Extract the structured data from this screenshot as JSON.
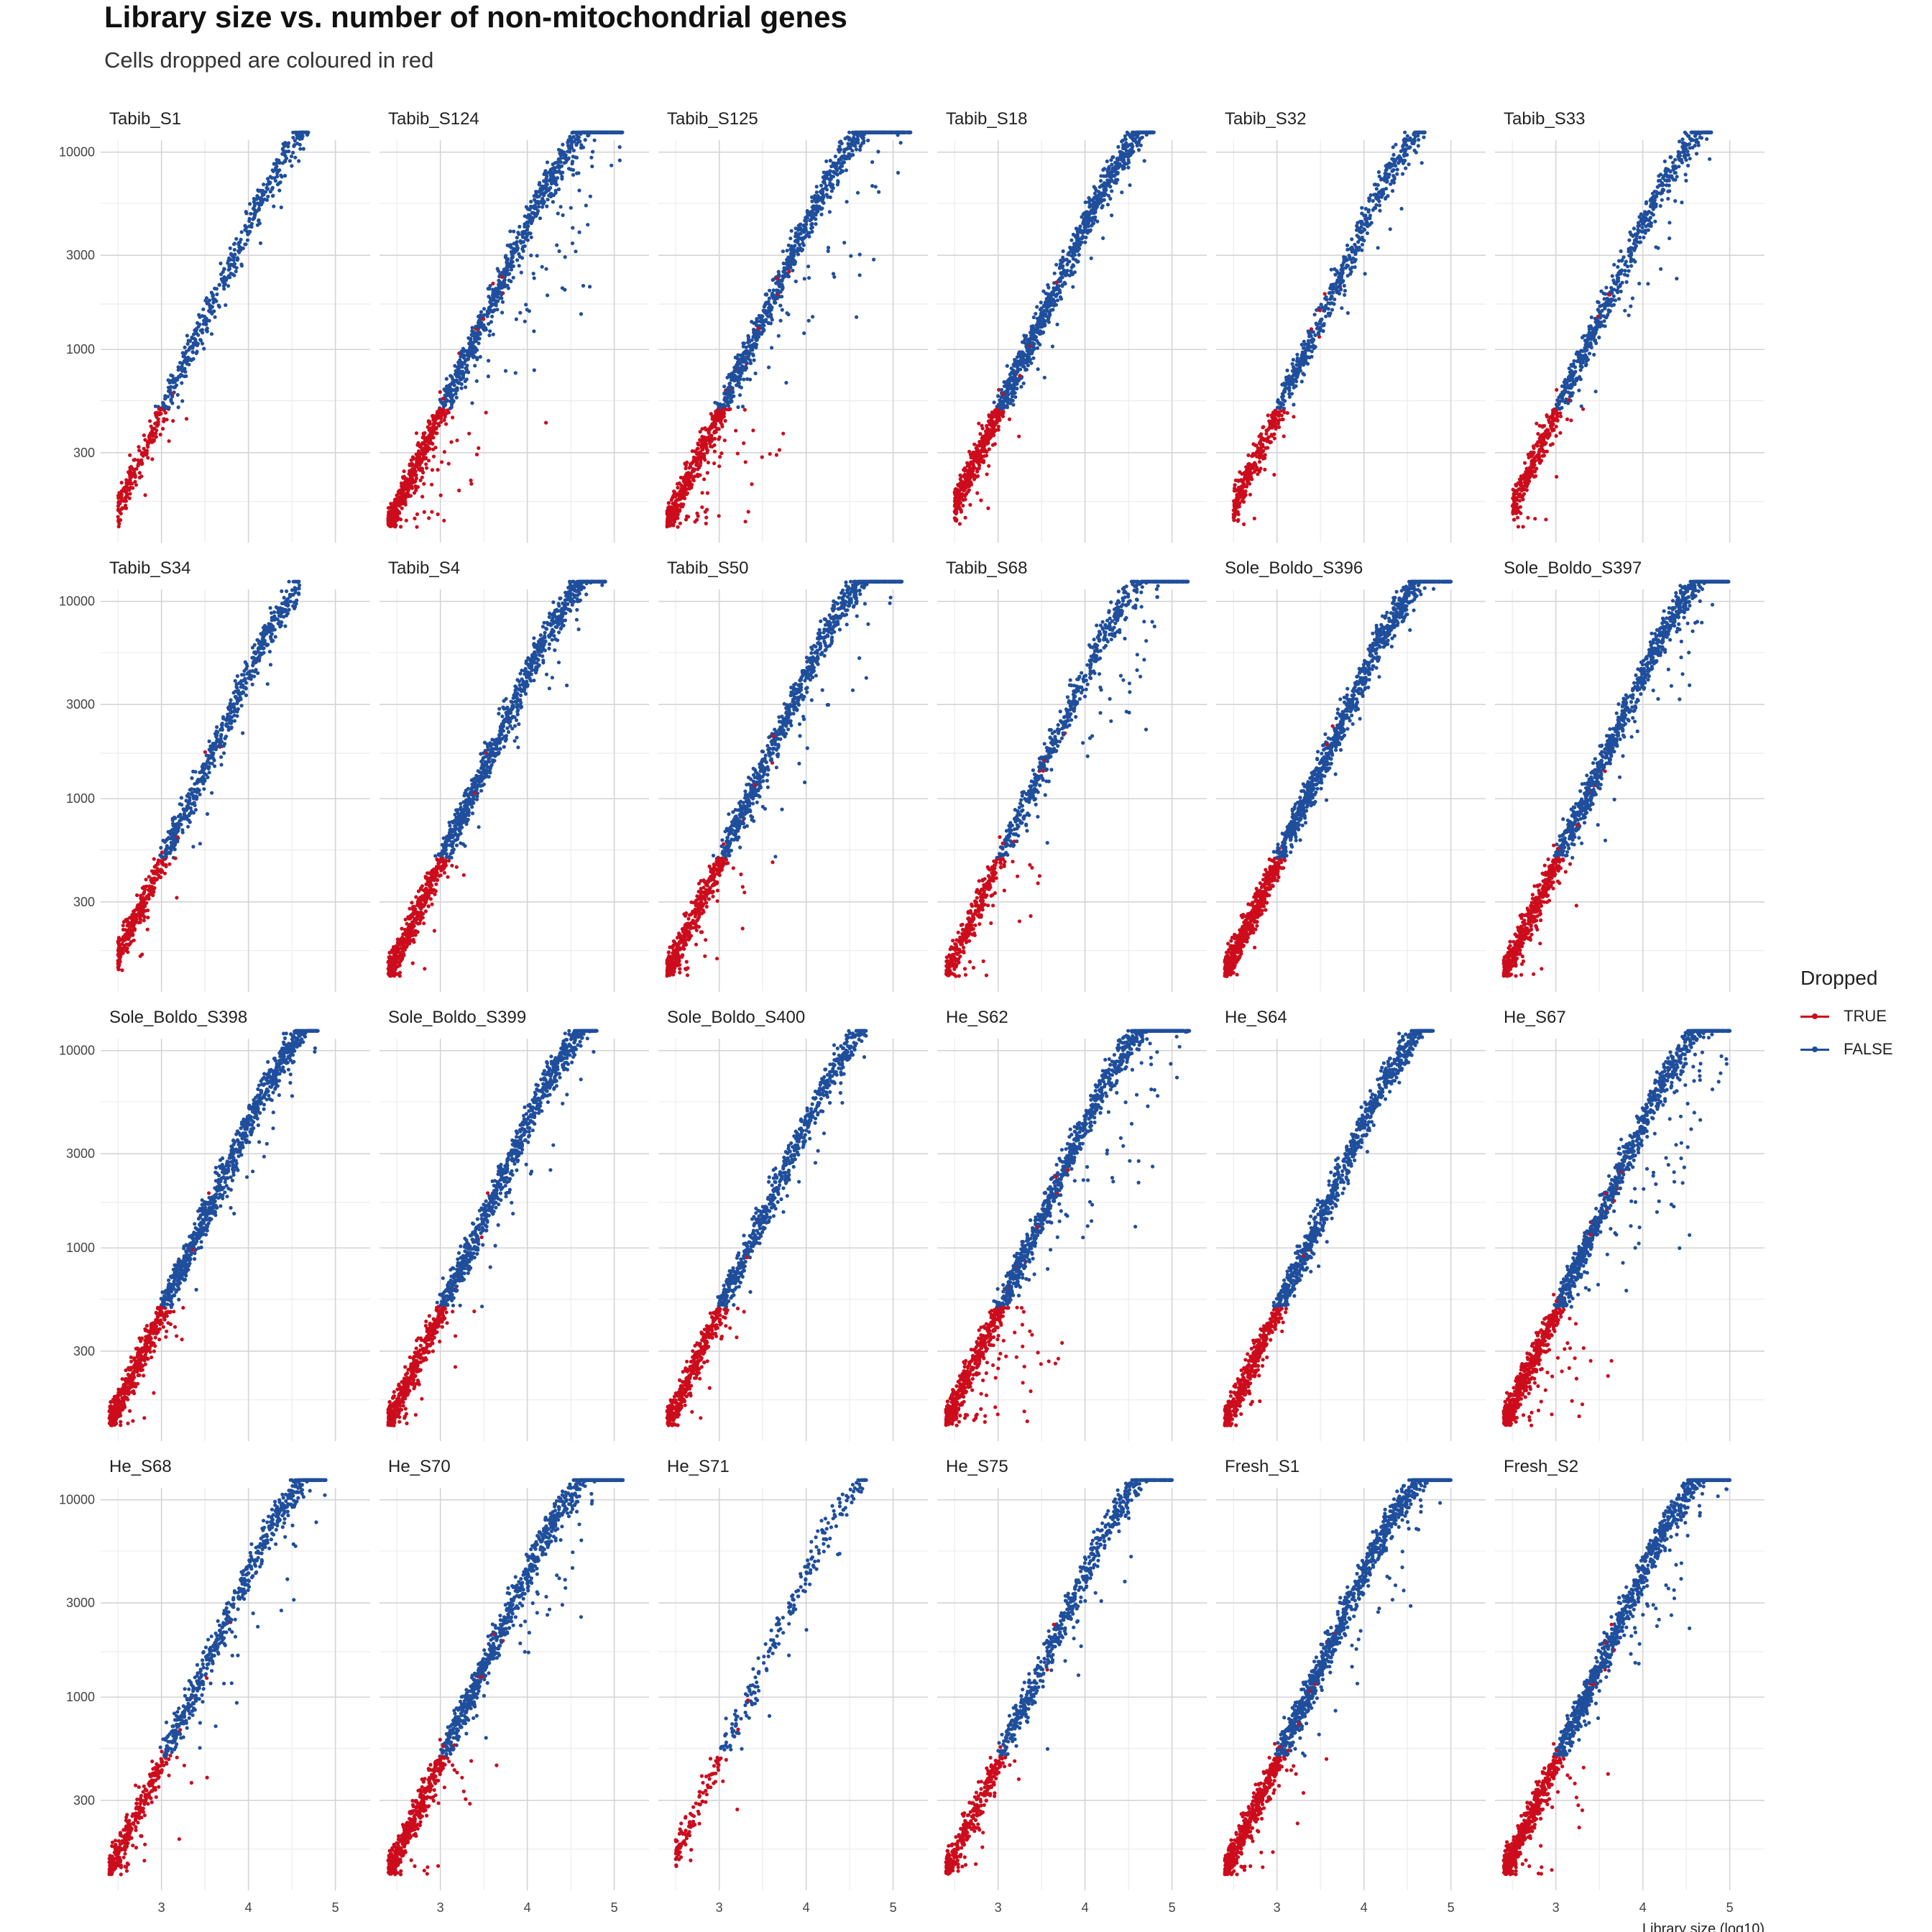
{
  "title": "Library size vs. number of non-mitochondrial genes",
  "subtitle": "Cells dropped are coloured in red",
  "legend": {
    "title": "Dropped",
    "items": [
      {
        "label": "TRUE",
        "color": "#cc0c1c"
      },
      {
        "label": "FALSE",
        "color": "#1f4e9c"
      }
    ]
  },
  "chart_data": {
    "type": "scatter",
    "xlabel": "Library size (log10)",
    "ylabel": "",
    "x_scale": "log10",
    "y_scale": "log10",
    "xlim": [
      2.3,
      5.4
    ],
    "ylim": [
      105,
      11500
    ],
    "x_ticks": [
      3,
      4,
      5
    ],
    "x_tick_labels": [
      "3",
      "4",
      "5"
    ],
    "y_ticks": [
      300,
      1000,
      3000,
      10000
    ],
    "y_tick_labels": [
      "300",
      "1000",
      "3000",
      "10000"
    ],
    "grid": true,
    "legend_position": "right",
    "series_colors": {
      "TRUE": "#cc0c1c",
      "FALSE": "#1f4e9c"
    },
    "panels": [
      {
        "name": "Tabib_S1",
        "x_range": [
          2.5,
          4.7
        ],
        "density": 0.35,
        "spread": 0.3
      },
      {
        "name": "Tabib_S124",
        "x_range": [
          2.4,
          5.1
        ],
        "density": 0.9,
        "spread": 0.8
      },
      {
        "name": "Tabib_S125",
        "x_range": [
          2.4,
          5.2
        ],
        "density": 0.9,
        "spread": 0.8
      },
      {
        "name": "Tabib_S18",
        "x_range": [
          2.5,
          4.8
        ],
        "density": 0.85,
        "spread": 0.3
      },
      {
        "name": "Tabib_S32",
        "x_range": [
          2.5,
          4.7
        ],
        "density": 0.5,
        "spread": 0.35
      },
      {
        "name": "Tabib_S33",
        "x_range": [
          2.5,
          4.8
        ],
        "density": 0.55,
        "spread": 0.5
      },
      {
        "name": "Tabib_S34",
        "x_range": [
          2.5,
          4.6
        ],
        "density": 0.5,
        "spread": 0.3
      },
      {
        "name": "Tabib_S4",
        "x_range": [
          2.4,
          4.9
        ],
        "density": 0.85,
        "spread": 0.35
      },
      {
        "name": "Tabib_S50",
        "x_range": [
          2.4,
          5.1
        ],
        "density": 0.85,
        "spread": 0.55
      },
      {
        "name": "Tabib_S68",
        "x_range": [
          2.4,
          5.2
        ],
        "density": 0.6,
        "spread": 0.7
      },
      {
        "name": "Sole_Boldo_S396",
        "x_range": [
          2.4,
          5.0
        ],
        "density": 1.0,
        "spread": 0.2
      },
      {
        "name": "Sole_Boldo_S397",
        "x_range": [
          2.4,
          5.0
        ],
        "density": 0.9,
        "spread": 0.4
      },
      {
        "name": "Sole_Boldo_S398",
        "x_range": [
          2.4,
          4.8
        ],
        "density": 0.85,
        "spread": 0.4
      },
      {
        "name": "Sole_Boldo_S399",
        "x_range": [
          2.4,
          4.8
        ],
        "density": 0.8,
        "spread": 0.4
      },
      {
        "name": "Sole_Boldo_S400",
        "x_range": [
          2.4,
          4.7
        ],
        "density": 0.6,
        "spread": 0.35
      },
      {
        "name": "He_S62",
        "x_range": [
          2.4,
          5.2
        ],
        "density": 1.0,
        "spread": 0.85
      },
      {
        "name": "He_S64",
        "x_range": [
          2.4,
          4.8
        ],
        "density": 0.8,
        "spread": 0.2
      },
      {
        "name": "He_S67",
        "x_range": [
          2.4,
          5.0
        ],
        "density": 1.0,
        "spread": 0.85
      },
      {
        "name": "He_S68",
        "x_range": [
          2.4,
          4.9
        ],
        "density": 0.55,
        "spread": 0.55
      },
      {
        "name": "He_S70",
        "x_range": [
          2.4,
          5.1
        ],
        "density": 0.85,
        "spread": 0.6
      },
      {
        "name": "He_S71",
        "x_range": [
          2.5,
          4.7
        ],
        "density": 0.15,
        "spread": 0.4
      },
      {
        "name": "He_S75",
        "x_range": [
          2.4,
          5.0
        ],
        "density": 0.6,
        "spread": 0.45
      },
      {
        "name": "Fresh_S1",
        "x_range": [
          2.4,
          5.0
        ],
        "density": 1.0,
        "spread": 0.5
      },
      {
        "name": "Fresh_S2",
        "x_range": [
          2.4,
          5.0
        ],
        "density": 1.0,
        "spread": 0.6
      }
    ]
  }
}
